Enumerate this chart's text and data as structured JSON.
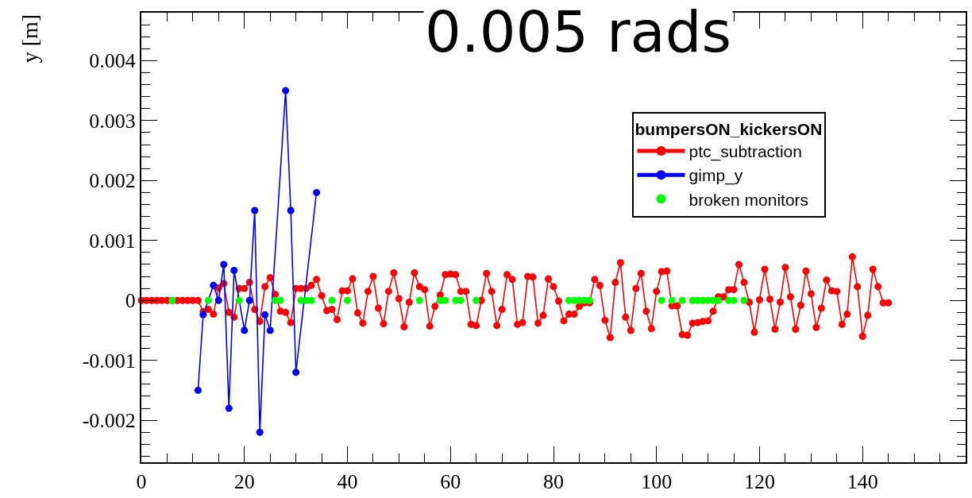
{
  "chart_data": {
    "type": "line",
    "title": "0.005 rads",
    "ylabel": "y [m]",
    "legend_title": "bumpersON_kickersON",
    "legend": "top right",
    "marker": "circle",
    "line_style": "solid",
    "grid": false,
    "xlim": [
      0,
      160
    ],
    "xticks": [
      0,
      20,
      40,
      60,
      80,
      100,
      120,
      140
    ],
    "ylim": [
      -0.0027,
      0.0048
    ],
    "yticks": [
      -0.002,
      -0.001,
      0,
      0.001,
      0.002,
      0.003,
      0.004
    ],
    "series": [
      {
        "name": "ptc_subtraction",
        "color": "#ff0000",
        "x": [
          0,
          1,
          2,
          3,
          4,
          5,
          6,
          7,
          8,
          9,
          10,
          11,
          12,
          13,
          14,
          15,
          16,
          17,
          18,
          19,
          20,
          21,
          22,
          23,
          24,
          25,
          26,
          27,
          28,
          29,
          30,
          31,
          32,
          33,
          34,
          35,
          36,
          37,
          38,
          39,
          40,
          41,
          42,
          43,
          44,
          45,
          46,
          47,
          48,
          49,
          50,
          51,
          52,
          53,
          54,
          55,
          56,
          57,
          58,
          59,
          60,
          61,
          62,
          63,
          64,
          65,
          66,
          67,
          68,
          69,
          70,
          71,
          72,
          73,
          74,
          75,
          76,
          77,
          78,
          79,
          80,
          81,
          82,
          83,
          84,
          85,
          86,
          87,
          88,
          89,
          90,
          91,
          92,
          93,
          94,
          95,
          96,
          97,
          98,
          99,
          100,
          101,
          102,
          103,
          104,
          105,
          106,
          107,
          108,
          109,
          110,
          111,
          112,
          113,
          114,
          115,
          116,
          117,
          118,
          119,
          120,
          121,
          122,
          123,
          124,
          125,
          126,
          127,
          128,
          129,
          130,
          131,
          132,
          133,
          134,
          135,
          136,
          137,
          138,
          139,
          140,
          141,
          142,
          143,
          144,
          145
        ],
        "values": [
          0,
          0,
          0,
          0,
          0,
          0,
          0,
          0,
          0,
          0,
          0,
          0,
          -0.00019,
          -0.00015,
          -0.00023,
          0.00021,
          0.00028,
          -0.0002,
          -0.00028,
          0.0002,
          0.0002,
          0.0003,
          -0.00015,
          -0.00035,
          0.00023,
          0.00038,
          0.0001,
          -0.00018,
          -0.0002,
          -0.00037,
          0.0002,
          0.0002,
          0.0002,
          0.00025,
          0.00035,
          8e-05,
          -0.00017,
          -0.00015,
          -0.00032,
          0.00016,
          0.00016,
          0.00036,
          -0.00021,
          -0.00038,
          0.00015,
          0.0004,
          -0.00013,
          -0.00039,
          0.00015,
          0.00046,
          3e-05,
          -0.00044,
          -3e-05,
          0.00046,
          0.00023,
          0.00018,
          -0.00043,
          -0.0001,
          9e-05,
          0.00043,
          0.00044,
          0.00043,
          0.00015,
          0.00015,
          -0.0004,
          -0.00042,
          0,
          0.00045,
          0.00015,
          -0.00042,
          -0.00015,
          0.00043,
          0.00035,
          -0.0004,
          -0.00037,
          0.0004,
          0.00039,
          -0.00038,
          -0.00025,
          0.00036,
          0.00023,
          -1e-05,
          -0.00034,
          -0.00023,
          -0.00023,
          -0.0001,
          -4e-05,
          -4e-05,
          0.00035,
          0.00025,
          -0.00033,
          -0.00062,
          0.0003,
          0.00063,
          -0.00028,
          -0.0005,
          0.0002,
          0.00045,
          -0.00018,
          -0.00047,
          0.00015,
          0.00048,
          0.00049,
          -9e-05,
          -9e-05,
          -0.00057,
          -0.00058,
          -0.00038,
          -0.00037,
          -0.00035,
          -0.00034,
          -0.00018,
          6e-05,
          6e-05,
          0.00018,
          0.00018,
          0.0006,
          0.0003,
          -3e-05,
          -0.00053,
          1e-05,
          0.00052,
          2e-05,
          -0.00048,
          -3e-05,
          0.00055,
          6e-05,
          -0.00048,
          -8e-05,
          0.00049,
          0.00011,
          -0.00045,
          -0.00013,
          0.00034,
          0.00016,
          0.00015,
          -0.0004,
          -0.00023,
          0.00073,
          0.00023,
          -0.0006,
          -0.00025,
          0.00052,
          0.00023,
          -4e-05,
          -4e-05
        ]
      },
      {
        "name": "gimp_y",
        "color": "#0000ff",
        "x": [
          11,
          12,
          14,
          15,
          16,
          17,
          18,
          20,
          21,
          22,
          23,
          24,
          25,
          28,
          29,
          30,
          34
        ],
        "values": [
          -0.0015,
          -0.00024,
          0.00025,
          0,
          0.0006,
          -0.0018,
          0.0005,
          -0.0005,
          0,
          0.0015,
          -0.0022,
          -0.00024,
          -0.0005,
          0.0035,
          0.0015,
          -0.0012,
          0.0018
        ]
      },
      {
        "name": "broken monitors",
        "type": "scatter",
        "color": "#00ff00",
        "x": [
          6,
          13,
          19,
          26,
          27,
          31,
          32,
          33,
          37,
          40,
          54,
          58,
          59,
          61,
          62,
          65,
          83,
          84,
          85,
          86,
          87,
          101,
          103,
          105,
          107,
          108,
          109,
          110,
          111,
          112,
          114,
          115,
          117
        ],
        "values": [
          0,
          0,
          0,
          0,
          0,
          0,
          0,
          0,
          0,
          0,
          0,
          0,
          0,
          0,
          0,
          0,
          0,
          0,
          0,
          0,
          0,
          0,
          0,
          0,
          0,
          0,
          0,
          0,
          0,
          0,
          0,
          0,
          0
        ]
      }
    ]
  }
}
